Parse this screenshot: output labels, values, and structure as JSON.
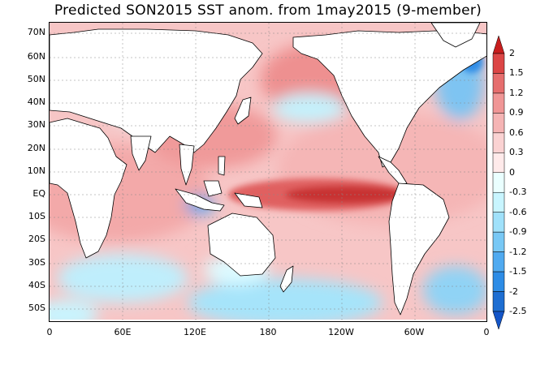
{
  "title": "Predicted SON2015 SST anom. from 1may2015 (9-member)",
  "lat_labels": [
    "70N",
    "60N",
    "50N",
    "40N",
    "30N",
    "20N",
    "10N",
    "EQ",
    "10S",
    "20S",
    "30S",
    "40S",
    "50S"
  ],
  "lon_labels": [
    "0",
    "60E",
    "120E",
    "180",
    "120W",
    "60W",
    "0"
  ],
  "colorbar": {
    "levels": [
      "2",
      "1.5",
      "1.2",
      "0.9",
      "0.6",
      "0.3",
      "0",
      "-0.3",
      "-0.6",
      "-0.9",
      "-1.2",
      "-1.5",
      "-2",
      "-2.5"
    ],
    "colors": [
      "#c81e1e",
      "#dc4646",
      "#e66e6e",
      "#f09696",
      "#f5b4b4",
      "#fad2d2",
      "#ffeaea",
      "#eaffff",
      "#c8f5ff",
      "#a0e1fa",
      "#78c8f5",
      "#50aaf0",
      "#2d8ce6",
      "#1e6ed2",
      "#1455c8"
    ]
  },
  "colors": {
    "land": "#ffffff",
    "coast": "#000000",
    "grid": "#888888"
  }
}
